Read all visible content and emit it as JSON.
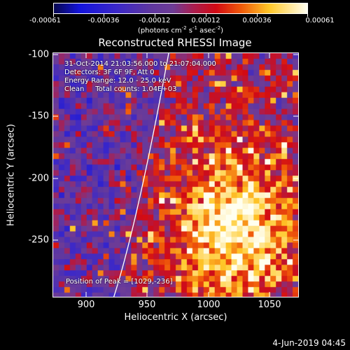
{
  "colorbar": {
    "ticks": [
      "-0.00061",
      "-0.00036",
      "-0.00012",
      "0.00012",
      "0.00036",
      "0.00061"
    ],
    "units_prefix": "(photons cm",
    "units_sup1": "-2",
    "units_mid1": " s",
    "units_sup2": "-1",
    "units_mid2": " asec",
    "units_sup3": "-2",
    "units_suffix": ")"
  },
  "title": "Reconstructed RHESSI Image",
  "info": {
    "line1": "31-Oct-2014 21:03:56.000 to 21:07:04.000",
    "line2": "Detectors: 3F 6F 9F, Att 0",
    "line3": "Energy Range: 12.0 - 25.0 keV",
    "line4": "Clean     Total counts: 1.04E+03"
  },
  "peak_text": "Position of Peak = [1029,-236]",
  "axes": {
    "xlabel": "Heliocentric X (arcsec)",
    "ylabel": "Heliocentric Y (arcsec)",
    "xticks": [
      "900",
      "950",
      "1000",
      "1050"
    ],
    "yticks": [
      "-100",
      "-150",
      "-200",
      "-250"
    ],
    "xlim": [
      874,
      1066
    ],
    "ylim": [
      -290,
      -97
    ]
  },
  "timestamp": "4-Jun-2019 04:45",
  "colors": {
    "background": "#000000",
    "foreground": "#ffffff"
  }
}
